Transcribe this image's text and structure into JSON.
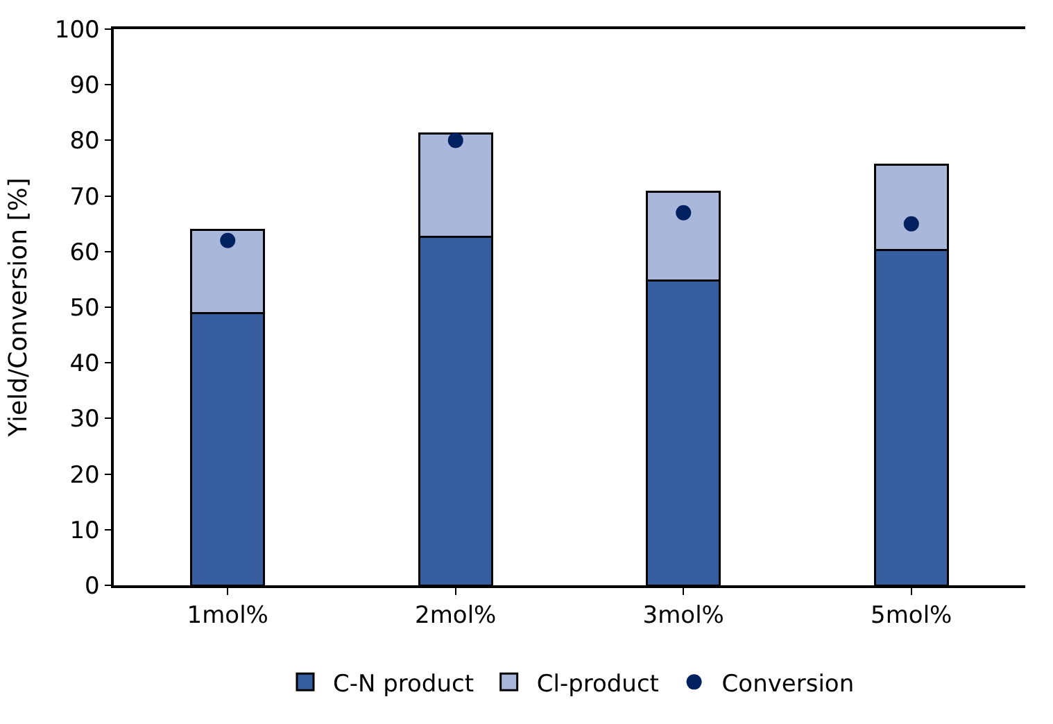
{
  "chart_data": {
    "type": "bar",
    "ylabel": "Yield/Conversion [%]",
    "categories": [
      "1mol%",
      "2mol%",
      "3mol%",
      "5mol%"
    ],
    "stacked": true,
    "series": [
      {
        "name": "C-N product",
        "color": "#365e9f",
        "values": [
          49.0,
          62.7,
          54.8,
          60.3
        ]
      },
      {
        "name": "Cl-product",
        "color": "#a9b7da",
        "values": [
          14.9,
          18.5,
          16.0,
          15.3
        ]
      },
      {
        "name": "Conversion",
        "type": "scatter",
        "color": "#002060",
        "x": [
          "1mol%",
          "2mol%",
          "3mol%",
          "5mol%"
        ],
        "values": [
          62,
          80,
          67,
          65
        ],
        "marker": "circle"
      }
    ],
    "ylim": [
      0,
      100
    ],
    "yticks": [
      0,
      10,
      20,
      30,
      40,
      50,
      60,
      70,
      80,
      90,
      100
    ],
    "grid": false,
    "legend": "bottom"
  }
}
